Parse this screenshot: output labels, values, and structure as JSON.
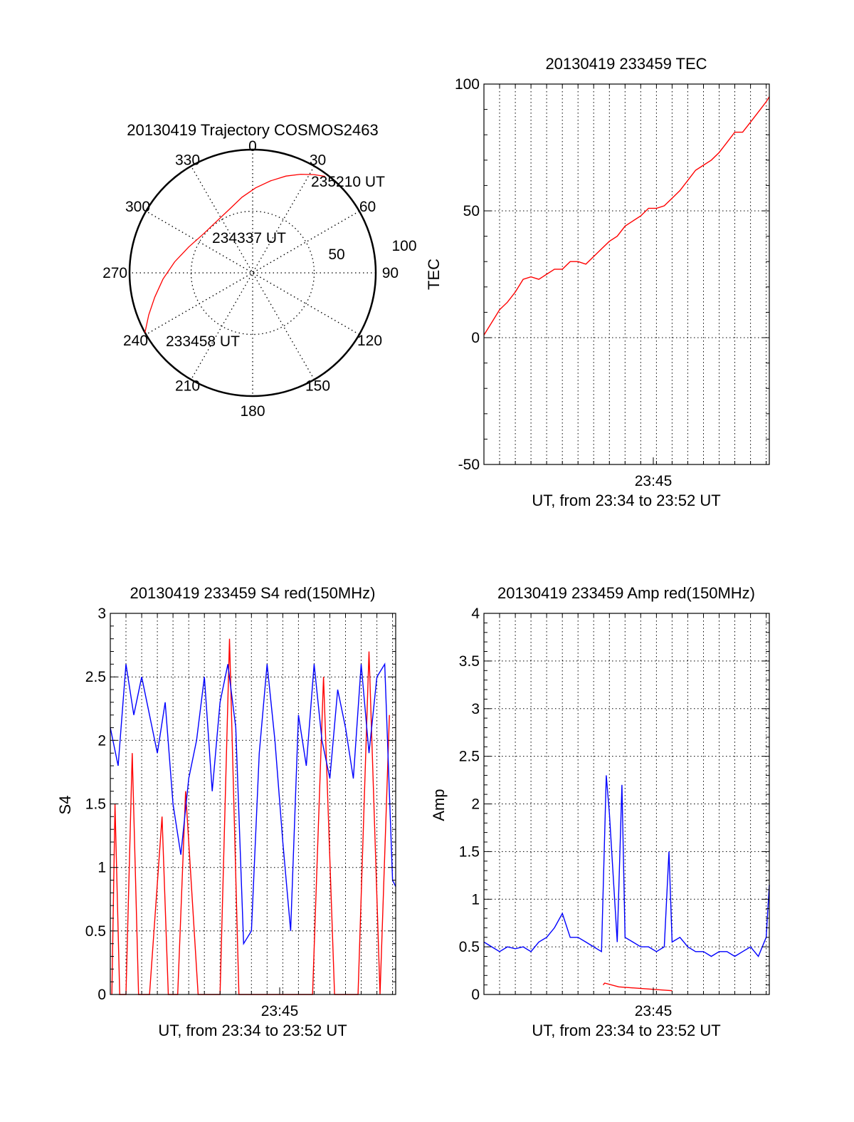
{
  "colors": {
    "red": "#ff0000",
    "blue": "#0000ff",
    "axis": "#000000",
    "grid": "#000000"
  },
  "chart_data": [
    {
      "id": "polar",
      "type": "scatter",
      "title": "20130419 Trajectory COSMOS2463",
      "projection": "polar",
      "angle_labels": [
        "0",
        "30",
        "60",
        "90",
        "120",
        "150",
        "180",
        "210",
        "240",
        "270",
        "300",
        "330"
      ],
      "radial_labels": [
        "50",
        "100"
      ],
      "radial_range": [
        0,
        100
      ],
      "grid": true,
      "trajectory": {
        "color": "red",
        "points": [
          {
            "az": 241,
            "r": 100
          },
          {
            "az": 248,
            "r": 91
          },
          {
            "az": 256,
            "r": 82
          },
          {
            "az": 266,
            "r": 73
          },
          {
            "az": 278,
            "r": 64
          },
          {
            "az": 292,
            "r": 56
          },
          {
            "az": 308,
            "r": 51
          },
          {
            "az": 325,
            "r": 51
          },
          {
            "az": 340,
            "r": 55
          },
          {
            "az": 352,
            "r": 62
          },
          {
            "az": 2,
            "r": 69
          },
          {
            "az": 11,
            "r": 76
          },
          {
            "az": 19,
            "r": 83
          },
          {
            "az": 26,
            "r": 89
          },
          {
            "az": 32,
            "r": 94
          },
          {
            "az": 37,
            "r": 98
          }
        ]
      },
      "annotations": [
        {
          "text": "233458 UT"
        },
        {
          "text": "234337 UT"
        },
        {
          "text": "235210 UT"
        }
      ]
    },
    {
      "id": "tec",
      "type": "line",
      "title": "20130419 233459 TEC",
      "xlabel": "UT, from 23:34 to 23:52 UT",
      "ylabel": "TEC",
      "xlim": [
        0,
        18.2
      ],
      "ylim": [
        -50,
        100
      ],
      "yticks": [
        "-50",
        "0",
        "50",
        "100"
      ],
      "xtick_label": "23:45",
      "xtick_value": 10.8,
      "grid": true,
      "series": [
        {
          "color": "red",
          "x": [
            0.0,
            0.5,
            1.0,
            1.5,
            2.0,
            2.5,
            3.0,
            3.5,
            4.0,
            4.5,
            5.0,
            5.5,
            6.0,
            6.5,
            7.0,
            7.5,
            8.0,
            8.5,
            9.0,
            9.5,
            10.0,
            10.5,
            11.0,
            11.5,
            12.0,
            12.5,
            13.0,
            13.5,
            14.0,
            14.5,
            15.0,
            15.5,
            16.0,
            16.5,
            17.0,
            17.5,
            18.0,
            18.2
          ],
          "y": [
            1,
            6,
            11,
            14,
            18,
            23,
            24,
            23,
            25,
            27,
            27,
            30,
            30,
            29,
            32,
            35,
            38,
            40,
            44,
            46,
            48,
            51,
            51,
            52,
            55,
            58,
            62,
            66,
            68,
            70,
            73,
            77,
            81,
            81,
            85,
            89,
            93,
            95
          ]
        }
      ]
    },
    {
      "id": "s4",
      "type": "line",
      "title": "20130419 233459 S4 red(150MHz)",
      "xlabel": "UT, from 23:34 to 23:52 UT",
      "ylabel": "S4",
      "xlim": [
        0,
        18.2
      ],
      "ylim": [
        0,
        3
      ],
      "yticks": [
        "0",
        "0.5",
        "1",
        "1.5",
        "2",
        "2.5",
        "3"
      ],
      "xtick_label": "23:45",
      "xtick_value": 10.8,
      "grid": true,
      "series": [
        {
          "color": "red",
          "x": [
            0.1,
            0.3,
            0.6,
            1.0,
            1.4,
            1.8,
            2.2,
            2.5,
            3.3,
            3.7,
            4.3,
            4.8,
            5.6,
            6.2,
            7.0,
            7.6,
            8.2,
            8.9,
            9.6,
            10.3,
            11.0,
            11.6,
            12.2,
            12.9,
            13.6,
            14.3,
            15.0,
            15.8,
            16.5,
            17.2,
            17.8
          ],
          "y": [
            0,
            1.5,
            0,
            0,
            1.9,
            0,
            0,
            0,
            1.4,
            0,
            0,
            1.6,
            0,
            0,
            0,
            2.8,
            0,
            0,
            0,
            0,
            0,
            0,
            0,
            0,
            2.5,
            0,
            0,
            0,
            2.7,
            0,
            2.2
          ]
        },
        {
          "color": "blue",
          "x": [
            0.0,
            0.5,
            1.0,
            1.5,
            2.0,
            2.5,
            3.0,
            3.5,
            4.0,
            4.5,
            5.0,
            5.5,
            6.0,
            6.5,
            7.0,
            7.5,
            8.0,
            8.5,
            9.0,
            9.5,
            10.0,
            10.5,
            11.0,
            11.5,
            12.0,
            12.5,
            13.0,
            13.5,
            14.0,
            14.5,
            15.0,
            15.5,
            16.0,
            16.5,
            17.0,
            17.5,
            18.0,
            18.2
          ],
          "y": [
            2.1,
            1.8,
            2.6,
            2.2,
            2.5,
            2.2,
            1.9,
            2.3,
            1.5,
            1.1,
            1.7,
            2.0,
            2.5,
            1.6,
            2.3,
            2.6,
            2.1,
            0.4,
            0.5,
            1.9,
            2.6,
            2.0,
            1.2,
            0.5,
            2.2,
            1.8,
            2.6,
            2.0,
            1.7,
            2.4,
            2.1,
            1.7,
            2.6,
            1.9,
            2.5,
            2.6,
            0.9,
            0.85
          ]
        }
      ]
    },
    {
      "id": "amp",
      "type": "line",
      "title": "20130419 233459 Amp red(150MHz)",
      "xlabel": "UT, from 23:34 to 23:52 UT",
      "ylabel": "Amp",
      "xlim": [
        0,
        18.2
      ],
      "ylim": [
        0,
        4
      ],
      "yticks": [
        "0",
        "0.5",
        "1",
        "1.5",
        "2",
        "2.5",
        "3",
        "3.5",
        "4"
      ],
      "xtick_label": "23:45",
      "xtick_value": 10.8,
      "grid": true,
      "series": [
        {
          "color": "blue",
          "x": [
            0.0,
            0.5,
            1.0,
            1.5,
            2.0,
            2.5,
            3.0,
            3.5,
            4.0,
            4.5,
            5.0,
            5.5,
            6.0,
            6.5,
            7.0,
            7.5,
            7.8,
            8.0,
            8.5,
            8.8,
            9.0,
            9.5,
            10.0,
            10.5,
            11.0,
            11.5,
            11.8,
            12.0,
            12.5,
            13.0,
            13.5,
            14.0,
            14.5,
            15.0,
            15.5,
            16.0,
            16.5,
            17.0,
            17.5,
            18.0,
            18.2
          ],
          "y": [
            0.55,
            0.5,
            0.45,
            0.5,
            0.48,
            0.5,
            0.45,
            0.55,
            0.6,
            0.7,
            0.85,
            0.6,
            0.6,
            0.55,
            0.5,
            0.45,
            2.3,
            1.9,
            0.55,
            2.2,
            0.6,
            0.55,
            0.5,
            0.5,
            0.45,
            0.5,
            1.5,
            0.55,
            0.6,
            0.5,
            0.45,
            0.45,
            0.4,
            0.45,
            0.45,
            0.4,
            0.45,
            0.5,
            0.4,
            0.6,
            1.15
          ]
        },
        {
          "color": "red",
          "x": [
            7.6,
            7.7,
            8.6,
            12.0
          ],
          "y": [
            0.1,
            0.12,
            0.08,
            0.04
          ]
        }
      ]
    }
  ]
}
